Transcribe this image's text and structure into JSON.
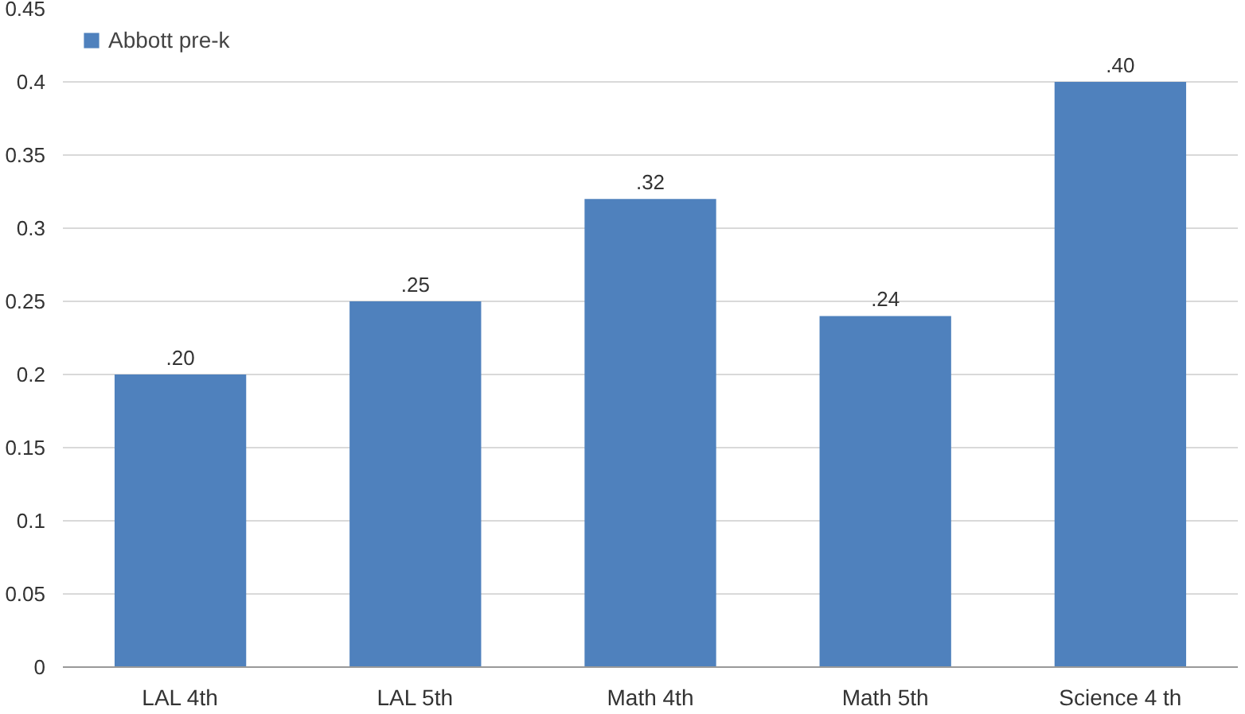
{
  "chart_data": {
    "type": "bar",
    "categories": [
      "LAL 4th",
      "LAL 5th",
      "Math 4th",
      "Math 5th",
      "Science 4 th"
    ],
    "series": [
      {
        "name": "Abbott pre-k",
        "color": "#4f81bd",
        "values": [
          0.2,
          0.25,
          0.32,
          0.24,
          0.4
        ],
        "value_labels": [
          ".20",
          ".25",
          ".32",
          ".24",
          ".40"
        ]
      }
    ],
    "ylim": [
      0,
      0.45
    ],
    "yticks": [
      0,
      0.05,
      0.1,
      0.15,
      0.2,
      0.25,
      0.3,
      0.35,
      0.4,
      0.45
    ],
    "grid": "y",
    "legend": "top left"
  }
}
